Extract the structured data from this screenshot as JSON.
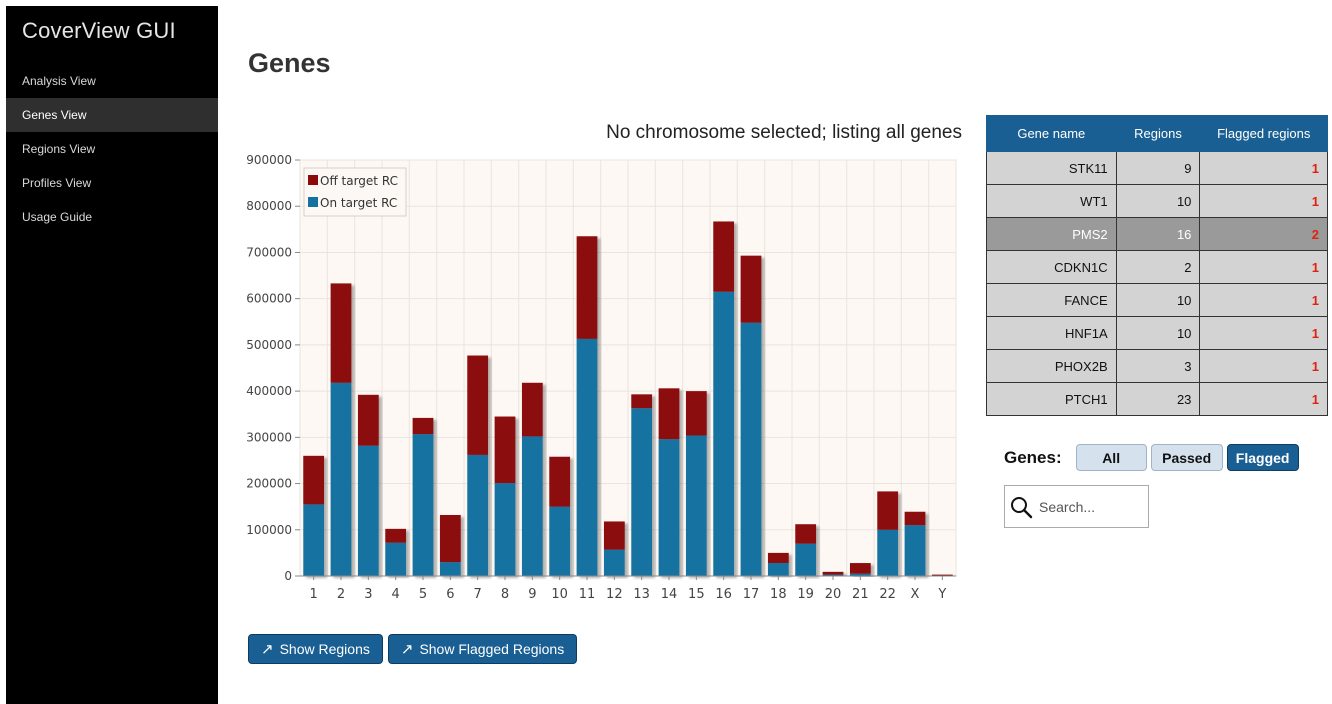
{
  "app": {
    "title": "CoverView GUI"
  },
  "sidebar": {
    "items": [
      {
        "label": "Analysis View"
      },
      {
        "label": "Genes View"
      },
      {
        "label": "Regions View"
      },
      {
        "label": "Profiles View"
      },
      {
        "label": "Usage Guide"
      }
    ],
    "active_index": 1
  },
  "main": {
    "title": "Genes",
    "chart_title": "No chromosome selected; listing all genes"
  },
  "buttons": {
    "show_regions": "Show Regions",
    "show_flagged_regions": "Show Flagged Regions",
    "arrow": "↗"
  },
  "table": {
    "headers": [
      "Gene name",
      "Regions",
      "Flagged regions"
    ],
    "rows": [
      {
        "gene": "STK11",
        "regions": "9",
        "flagged": "1"
      },
      {
        "gene": "WT1",
        "regions": "10",
        "flagged": "1"
      },
      {
        "gene": "PMS2",
        "regions": "16",
        "flagged": "2"
      },
      {
        "gene": "CDKN1C",
        "regions": "2",
        "flagged": "1"
      },
      {
        "gene": "FANCE",
        "regions": "10",
        "flagged": "1"
      },
      {
        "gene": "HNF1A",
        "regions": "10",
        "flagged": "1"
      },
      {
        "gene": "PHOX2B",
        "regions": "3",
        "flagged": "1"
      },
      {
        "gene": "PTCH1",
        "regions": "23",
        "flagged": "1"
      }
    ],
    "selected_row": 2
  },
  "filter": {
    "label": "Genes:",
    "all": "All",
    "passed": "Passed",
    "flagged": "Flagged",
    "active": "Flagged"
  },
  "search": {
    "placeholder": "Search...",
    "value": "",
    "icon": "search-icon"
  },
  "colors": {
    "on_target": "#1372a0",
    "off_target": "#8c0a0a",
    "accent": "#1a5f93",
    "flag_text": "#e0210f"
  },
  "chart_data": {
    "type": "bar",
    "stacked": true,
    "categories": [
      "1",
      "2",
      "3",
      "4",
      "5",
      "6",
      "7",
      "8",
      "9",
      "10",
      "11",
      "12",
      "13",
      "14",
      "15",
      "16",
      "17",
      "18",
      "19",
      "20",
      "21",
      "22",
      "X",
      "Y"
    ],
    "series": [
      {
        "name": "On target RC",
        "color": "#1372a0",
        "values": [
          155000,
          418000,
          282000,
          72000,
          307000,
          30000,
          262000,
          201000,
          302000,
          150000,
          513000,
          57000,
          363000,
          296000,
          304000,
          615000,
          548000,
          28000,
          70000,
          3000,
          5000,
          100000,
          110000,
          1000
        ]
      },
      {
        "name": "Off target RC",
        "color": "#8c0a0a",
        "values": [
          105000,
          215000,
          110000,
          30000,
          35000,
          102000,
          215000,
          144000,
          116000,
          108000,
          222000,
          61000,
          30000,
          110000,
          96000,
          152000,
          145000,
          22000,
          42000,
          6000,
          23000,
          83000,
          29000,
          2000
        ]
      }
    ],
    "yticks": [
      0,
      100000,
      200000,
      300000,
      400000,
      500000,
      600000,
      700000,
      800000,
      900000
    ],
    "ylim": [
      0,
      900000
    ],
    "grid": true,
    "legend": "top-left",
    "legend_order": [
      "Off target RC",
      "On target RC"
    ]
  }
}
